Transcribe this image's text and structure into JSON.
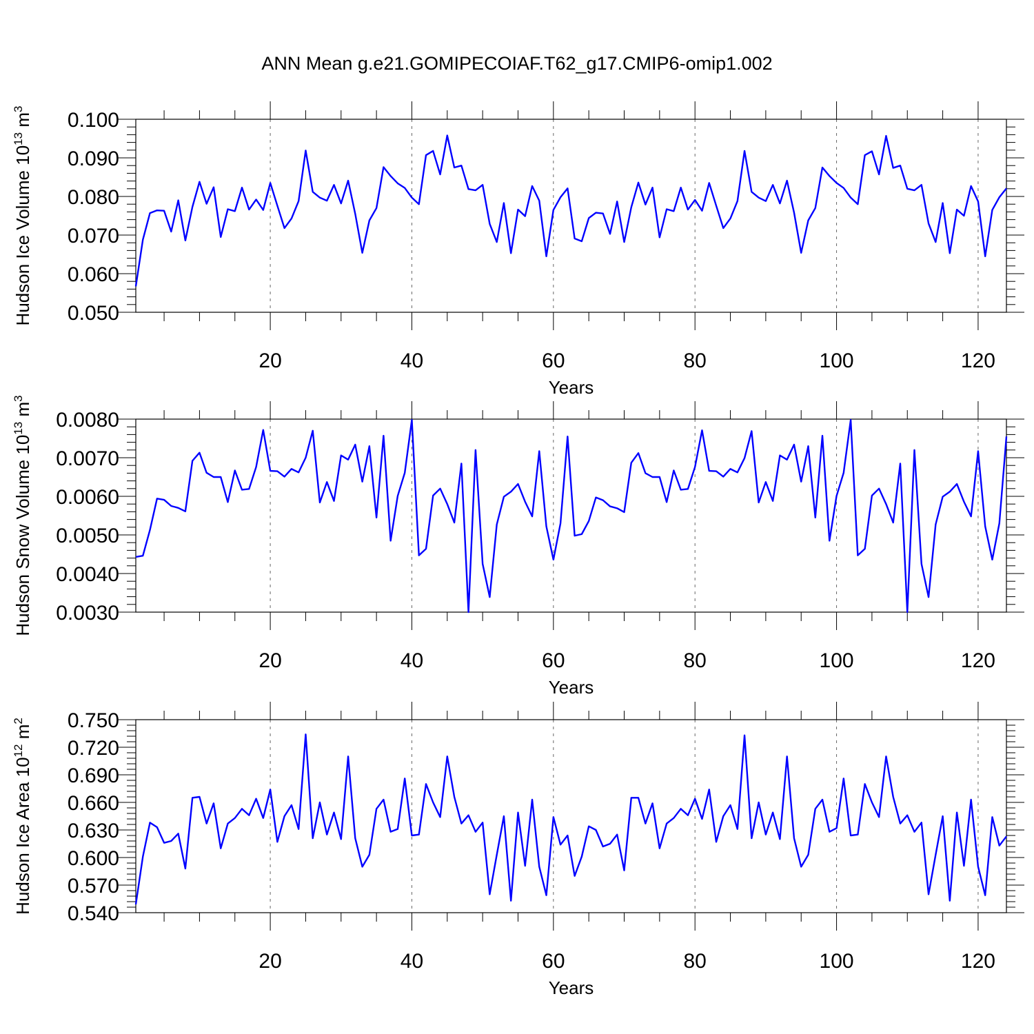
{
  "title": "ANN Mean g.e21.GOMIPECOIAF.T62_g17.CMIP6-omip1.002",
  "chart_data": [
    {
      "type": "line",
      "title": "ANN Mean g.e21.GOMIPECOIAF.T62_g17.CMIP6-omip1.002",
      "ylabel_main": "Hudson Ice Volume 10",
      "ylabel_exp": "13",
      "ylabel_unit": " m",
      "ylabel_unit_exp": "3",
      "xlabel": "Years",
      "xlim": [
        1,
        124
      ],
      "ylim": [
        0.05,
        0.1
      ],
      "xticks": [
        20,
        40,
        60,
        80,
        100,
        120
      ],
      "xtick_labels": [
        "20",
        "40",
        "60",
        "80",
        "100",
        "120"
      ],
      "yticks": [
        0.05,
        0.06,
        0.07,
        0.08,
        0.09,
        0.1
      ],
      "ytick_labels": [
        "0.050",
        "0.060",
        "0.070",
        "0.080",
        "0.090",
        "0.100"
      ],
      "grid": "vertical dashed at major x ticks",
      "series": [
        {
          "color": "#0000ff",
          "x_start": 1,
          "values": [
            0.0567,
            0.0688,
            0.0757,
            0.0764,
            0.0763,
            0.0709,
            0.079,
            0.0686,
            0.0773,
            0.0838,
            0.0781,
            0.0824,
            0.0695,
            0.0767,
            0.0762,
            0.0823,
            0.0766,
            0.0792,
            0.0765,
            0.0835,
            0.0776,
            0.0718,
            0.0743,
            0.0788,
            0.0919,
            0.0812,
            0.0797,
            0.0789,
            0.083,
            0.0782,
            0.0841,
            0.0755,
            0.0654,
            0.0738,
            0.077,
            0.0876,
            0.0853,
            0.0834,
            0.0822,
            0.0797,
            0.078,
            0.0907,
            0.0918,
            0.0857,
            0.0958,
            0.0875,
            0.088,
            0.0819,
            0.0816,
            0.083,
            0.0729,
            0.0682,
            0.0783,
            0.0653,
            0.0766,
            0.0749,
            0.0827,
            0.0789,
            0.0645,
            0.0765,
            0.0798,
            0.0821,
            0.0691,
            0.0684,
            0.0744,
            0.0758,
            0.0756,
            0.0703,
            0.0787,
            0.0682,
            0.0772,
            0.0836,
            0.0779,
            0.0823,
            0.0694,
            0.0767,
            0.0762,
            0.0823,
            0.0766,
            0.0791,
            0.0763,
            0.0835,
            0.0776,
            0.0718,
            0.0743,
            0.0788,
            0.0918,
            0.0812,
            0.0797,
            0.0788,
            0.083,
            0.0782,
            0.0841,
            0.0758,
            0.0654,
            0.0738,
            0.077,
            0.0875,
            0.0853,
            0.0835,
            0.0822,
            0.0797,
            0.078,
            0.0907,
            0.0917,
            0.0857,
            0.0957,
            0.0874,
            0.088,
            0.082,
            0.0816,
            0.083,
            0.073,
            0.0682,
            0.0783,
            0.0653,
            0.0766,
            0.075,
            0.0827,
            0.0787,
            0.0645,
            0.0765,
            0.0798,
            0.0821
          ]
        }
      ]
    },
    {
      "type": "line",
      "ylabel_main": "Hudson Snow Volume 10",
      "ylabel_exp": "13",
      "ylabel_unit": " m",
      "ylabel_unit_exp": "3",
      "xlabel": "Years",
      "xlim": [
        1,
        124
      ],
      "ylim": [
        0.003,
        0.008
      ],
      "xticks": [
        20,
        40,
        60,
        80,
        100,
        120
      ],
      "xtick_labels": [
        "20",
        "40",
        "60",
        "80",
        "100",
        "120"
      ],
      "yticks": [
        0.003,
        0.004,
        0.005,
        0.006,
        0.007,
        0.008
      ],
      "ytick_labels": [
        "0.0030",
        "0.0040",
        "0.0050",
        "0.0060",
        "0.0070",
        "0.0080"
      ],
      "grid": "vertical dashed at major x ticks",
      "series": [
        {
          "color": "#0000ff",
          "x_start": 1,
          "values": [
            0.00443,
            0.00446,
            0.00513,
            0.00594,
            0.00591,
            0.00575,
            0.0057,
            0.00561,
            0.00692,
            0.00713,
            0.00661,
            0.0065,
            0.0065,
            0.00585,
            0.00667,
            0.00617,
            0.00619,
            0.00676,
            0.00772,
            0.00666,
            0.00665,
            0.00651,
            0.00671,
            0.00662,
            0.007,
            0.0077,
            0.00584,
            0.00637,
            0.00588,
            0.00706,
            0.00695,
            0.00734,
            0.00638,
            0.0073,
            0.00545,
            0.00757,
            0.00485,
            0.00601,
            0.00661,
            0.00798,
            0.00447,
            0.00464,
            0.00602,
            0.0062,
            0.0058,
            0.00532,
            0.00685,
            0.003,
            0.0072,
            0.00425,
            0.00339,
            0.00527,
            0.00599,
            0.00612,
            0.00632,
            0.00586,
            0.00548,
            0.00717,
            0.00522,
            0.00436,
            0.0053,
            0.00755,
            0.00498,
            0.00502,
            0.00536,
            0.00597,
            0.0059,
            0.00574,
            0.00569,
            0.00559,
            0.00687,
            0.00712,
            0.0066,
            0.0065,
            0.0065,
            0.00585,
            0.00667,
            0.00617,
            0.00619,
            0.00676,
            0.00771,
            0.00666,
            0.00665,
            0.00651,
            0.00671,
            0.00662,
            0.00699,
            0.00769,
            0.00584,
            0.00637,
            0.00588,
            0.00706,
            0.00695,
            0.00734,
            0.00638,
            0.0073,
            0.00545,
            0.00757,
            0.00485,
            0.00601,
            0.00661,
            0.00798,
            0.00447,
            0.00464,
            0.00602,
            0.0062,
            0.0058,
            0.00532,
            0.00685,
            0.003,
            0.0072,
            0.00425,
            0.00339,
            0.00527,
            0.00599,
            0.00612,
            0.00632,
            0.00586,
            0.00548,
            0.00717,
            0.00522,
            0.00436,
            0.0053,
            0.00755
          ]
        }
      ]
    },
    {
      "type": "line",
      "ylabel_main": "Hudson Ice Area 10",
      "ylabel_exp": "12",
      "ylabel_unit": " m",
      "ylabel_unit_exp": "2",
      "xlabel": "Years",
      "xlim": [
        1,
        124
      ],
      "ylim": [
        0.54,
        0.75
      ],
      "xticks": [
        20,
        40,
        60,
        80,
        100,
        120
      ],
      "xtick_labels": [
        "20",
        "40",
        "60",
        "80",
        "100",
        "120"
      ],
      "yticks": [
        0.54,
        0.57,
        0.6,
        0.63,
        0.66,
        0.69,
        0.72,
        0.75
      ],
      "ytick_labels": [
        "0.540",
        "0.570",
        "0.600",
        "0.630",
        "0.660",
        "0.690",
        "0.720",
        "0.750"
      ],
      "grid": "vertical dashed at major x ticks",
      "series": [
        {
          "color": "#0000ff",
          "x_start": 1,
          "values": [
            0.549,
            0.601,
            0.638,
            0.633,
            0.616,
            0.618,
            0.626,
            0.588,
            0.665,
            0.666,
            0.637,
            0.659,
            0.61,
            0.637,
            0.643,
            0.653,
            0.646,
            0.664,
            0.643,
            0.674,
            0.617,
            0.645,
            0.657,
            0.631,
            0.734,
            0.621,
            0.66,
            0.625,
            0.649,
            0.62,
            0.71,
            0.621,
            0.59,
            0.603,
            0.653,
            0.663,
            0.628,
            0.631,
            0.686,
            0.624,
            0.625,
            0.68,
            0.66,
            0.644,
            0.71,
            0.666,
            0.637,
            0.646,
            0.628,
            0.638,
            0.56,
            0.603,
            0.645,
            0.553,
            0.649,
            0.591,
            0.663,
            0.59,
            0.559,
            0.644,
            0.614,
            0.624,
            0.58,
            0.601,
            0.634,
            0.63,
            0.612,
            0.615,
            0.625,
            0.586,
            0.665,
            0.665,
            0.637,
            0.659,
            0.61,
            0.637,
            0.643,
            0.653,
            0.646,
            0.664,
            0.642,
            0.674,
            0.617,
            0.645,
            0.657,
            0.631,
            0.733,
            0.621,
            0.66,
            0.625,
            0.649,
            0.62,
            0.71,
            0.621,
            0.59,
            0.603,
            0.653,
            0.663,
            0.628,
            0.632,
            0.686,
            0.624,
            0.625,
            0.68,
            0.66,
            0.644,
            0.71,
            0.666,
            0.637,
            0.646,
            0.628,
            0.638,
            0.56,
            0.603,
            0.645,
            0.553,
            0.649,
            0.591,
            0.663,
            0.59,
            0.559,
            0.644,
            0.613,
            0.623
          ]
        }
      ]
    }
  ]
}
